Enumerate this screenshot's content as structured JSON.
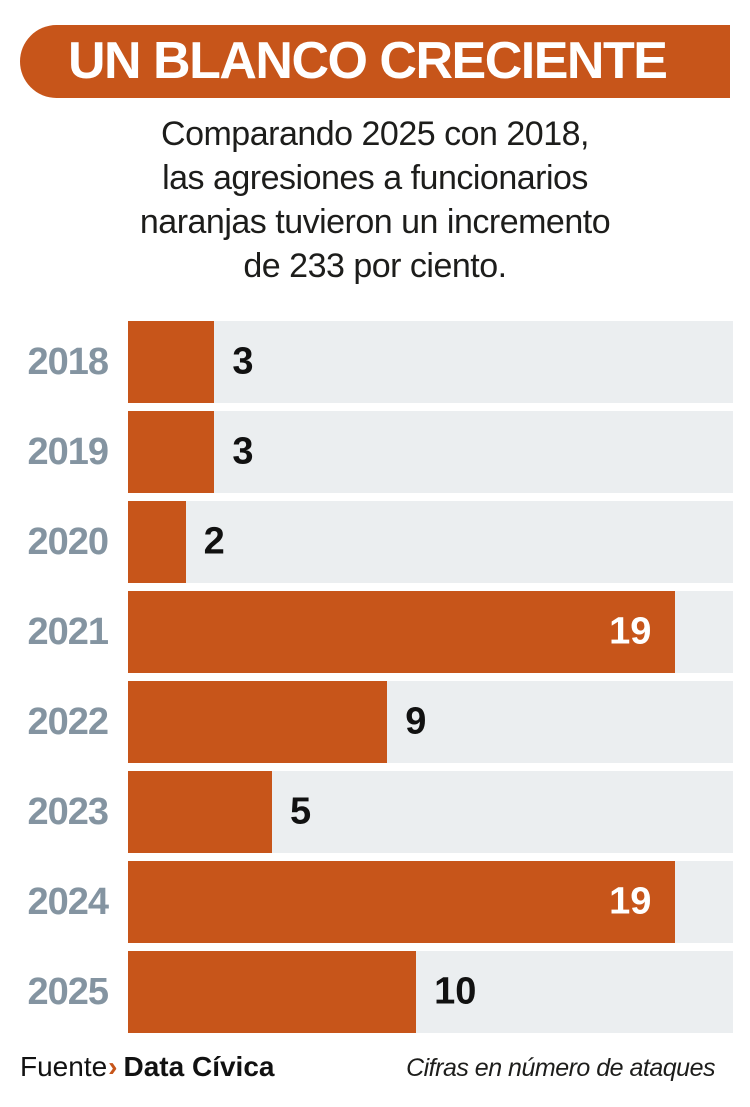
{
  "header": {
    "title": "UN BLANCO CRECIENTE"
  },
  "subtitle": {
    "lines": [
      "Comparando 2025 con 2018,",
      "las agresiones a funcionarios",
      "naranjas tuvieron un incremento",
      "de 233 por ciento."
    ]
  },
  "chart_data": {
    "type": "bar",
    "orientation": "horizontal",
    "title": "UN BLANCO CRECIENTE",
    "categories": [
      "2018",
      "2019",
      "2020",
      "2021",
      "2022",
      "2023",
      "2024",
      "2025"
    ],
    "values": [
      3,
      3,
      2,
      19,
      9,
      5,
      19,
      10
    ],
    "xlabel": "",
    "ylabel": "",
    "xlim": [
      0,
      21
    ],
    "grid": false,
    "legend": false,
    "bar_color": "#c7551a",
    "track_color": "#ebeef0",
    "note": "Cifras en número de ataques"
  },
  "footer": {
    "source_label": "Fuente",
    "source_chevron": "›",
    "source_name": "Data Cívica",
    "note": "Cifras en número de ataques"
  },
  "colors": {
    "accent_orange": "#c7551a",
    "track_gray": "#ebeef0",
    "year_label_gray_blue": "#8494a1",
    "text_dark": "#1d1d1b",
    "value_inside_white": "#ffffff"
  }
}
